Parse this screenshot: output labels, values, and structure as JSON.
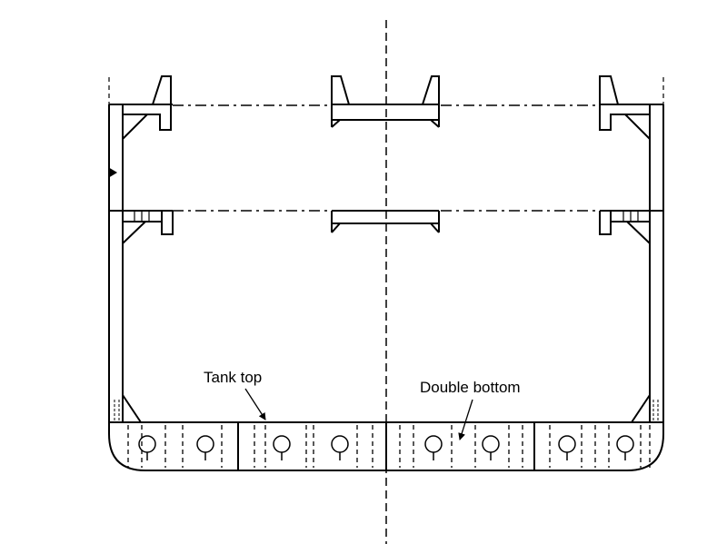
{
  "labels": {
    "tank_top": "Tank top",
    "double_bottom": "Double bottom"
  },
  "colors": {
    "stroke": "#000000",
    "background": "#ffffff"
  }
}
